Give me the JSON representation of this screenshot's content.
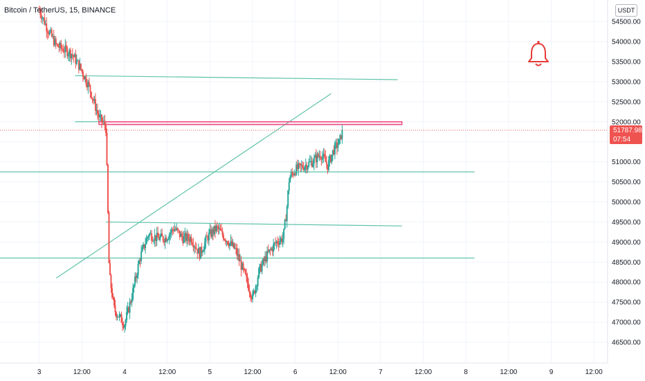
{
  "header": {
    "title": "Bitcoin / TetherUS, 15, BINANCE",
    "currency": "USDT"
  },
  "price_badge": {
    "value": "51787.98",
    "countdown": "07:54",
    "color": "#ef5350"
  },
  "colors": {
    "up": "#26a69a",
    "down": "#ef5350",
    "trendline": "#5fc3a9",
    "zone": "#ec407a",
    "alert": "#e53935"
  },
  "alert_icon": "bell-icon",
  "chart_data": {
    "type": "candlestick",
    "symbol": "BTCUSDT",
    "interval": "15",
    "exchange": "BINANCE",
    "y_ticks": [
      46500,
      47000,
      47500,
      48000,
      48500,
      49000,
      49500,
      50000,
      50500,
      51000,
      51500,
      52000,
      52500,
      53000,
      53500,
      54000,
      54500
    ],
    "y_tick_labels": [
      "46500.00",
      "47000.00",
      "47500.00",
      "48000.00",
      "48500.00",
      "49000.00",
      "49500.00",
      "50000.00",
      "50500.00",
      "51000.00",
      "51500.00",
      "52000.00",
      "52500.00",
      "53000.00",
      "53500.00",
      "54000.00",
      "54500.00"
    ],
    "x_ticks": [
      "3",
      "12:00",
      "4",
      "12:00",
      "5",
      "12:00",
      "6",
      "12:00",
      "7",
      "12:00",
      "8",
      "12:00",
      "9",
      "12:00"
    ],
    "last_price": 51787.98,
    "anchors": [
      {
        "t": -1.0,
        "p": 54800
      },
      {
        "t": -0.9,
        "p": 54300
      },
      {
        "t": -0.8,
        "p": 53900
      },
      {
        "t": -0.62,
        "p": 53700
      },
      {
        "t": -0.52,
        "p": 53350
      },
      {
        "t": -0.42,
        "p": 52900
      },
      {
        "t": -0.3,
        "p": 52100
      },
      {
        "t": -0.22,
        "p": 51900
      },
      {
        "t": -0.2,
        "p": 50200
      },
      {
        "t": -0.18,
        "p": 48200
      },
      {
        "t": -0.12,
        "p": 47300
      },
      {
        "t": -0.05,
        "p": 47100
      },
      {
        "t": 0.0,
        "p": 46950
      },
      {
        "t": 0.08,
        "p": 47600
      },
      {
        "t": 0.18,
        "p": 48600
      },
      {
        "t": 0.28,
        "p": 49200
      },
      {
        "t": 0.38,
        "p": 49100
      },
      {
        "t": 0.48,
        "p": 49100
      },
      {
        "t": 0.58,
        "p": 49350
      },
      {
        "t": 0.68,
        "p": 49100
      },
      {
        "t": 0.78,
        "p": 49100
      },
      {
        "t": 0.88,
        "p": 48700
      },
      {
        "t": 0.98,
        "p": 49150
      },
      {
        "t": 1.08,
        "p": 49350
      },
      {
        "t": 1.18,
        "p": 49100
      },
      {
        "t": 1.3,
        "p": 48800
      },
      {
        "t": 1.42,
        "p": 48100
      },
      {
        "t": 1.5,
        "p": 47600
      },
      {
        "t": 1.58,
        "p": 48300
      },
      {
        "t": 1.68,
        "p": 48700
      },
      {
        "t": 1.78,
        "p": 49000
      },
      {
        "t": 1.86,
        "p": 49100
      },
      {
        "t": 1.9,
        "p": 49800
      },
      {
        "t": 1.93,
        "p": 50600
      },
      {
        "t": 2.0,
        "p": 50800
      },
      {
        "t": 2.1,
        "p": 50900
      },
      {
        "t": 2.2,
        "p": 51000
      },
      {
        "t": 2.3,
        "p": 51200
      },
      {
        "t": 2.38,
        "p": 50900
      },
      {
        "t": 2.45,
        "p": 51300
      },
      {
        "t": 2.52,
        "p": 51500
      },
      {
        "t": 2.55,
        "p": 51788
      }
    ],
    "drawings": {
      "horizontal_lines": [
        {
          "name": "hline-48600",
          "t1": -1.5,
          "p1": 48600,
          "t2": 4.1,
          "p2": 48600
        },
        {
          "name": "hline-50750",
          "t1": -1.5,
          "p1": 50750,
          "t2": 4.1,
          "p2": 50750
        },
        {
          "name": "hline-49500",
          "t1": -0.22,
          "p1": 49500,
          "t2": 3.25,
          "p2": 49400
        },
        {
          "name": "hline-52000",
          "t1": -0.58,
          "p1": 52000,
          "t2": -0.18,
          "p2": 52000
        },
        {
          "name": "hline-53150",
          "t1": -0.58,
          "p1": 53150,
          "t2": 3.2,
          "p2": 53050
        }
      ],
      "trendline": {
        "t1": -0.8,
        "p1": 48100,
        "t2": 2.42,
        "p2": 52700
      },
      "zone": {
        "t1": -0.3,
        "t2": 3.25,
        "top": 52000,
        "bottom": 51950
      }
    }
  }
}
